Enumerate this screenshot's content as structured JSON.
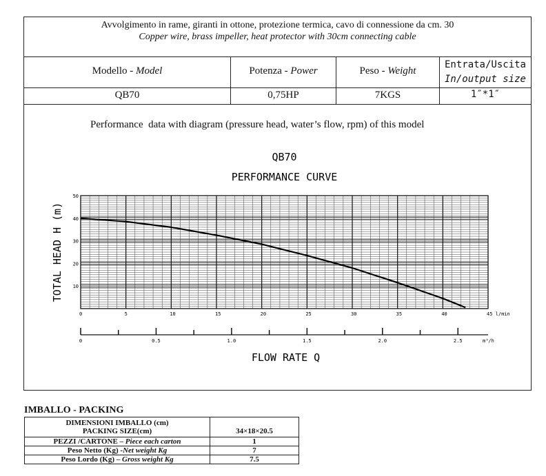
{
  "header": {
    "line_it": "Avvolgimento in rame, giranti in ottone, protezione termica, cavo di connessione da cm. 30",
    "line_en": "Copper wire, brass impeller, heat protector with 30cm connecting cable"
  },
  "spec": {
    "model_label": "Modello - ",
    "model_label_en": "Model",
    "power_label": "Potenza - ",
    "power_label_en": "Power",
    "weight_label": "Peso - ",
    "weight_label_en": "Weight",
    "size_label": "Entrata/Uscita",
    "size_label_en": "In/output size",
    "model": "QB70",
    "power": "0,75HP",
    "weight": "7KGS",
    "size": "1″*1″"
  },
  "perf_caption": "Performance  data with diagram (pressure head, water’s flow, rpm) of this model",
  "chart_data": {
    "type": "line",
    "title": "QB70",
    "subtitle": "PERFORMANCE CURVE",
    "ylabel": "TOTAL HEAD  H (m)",
    "xlabel": "FLOW RATE Q",
    "x_unit": "l/min",
    "x2_unit": "m³/h",
    "xlim": [
      0,
      45
    ],
    "ylim": [
      0,
      50
    ],
    "x_ticks": [
      "0",
      "5",
      "10",
      "15",
      "20",
      "25",
      "30",
      "35",
      "40",
      "45"
    ],
    "y_ticks": [
      "10",
      "20",
      "30",
      "40",
      "50"
    ],
    "x2_ticks": [
      "0",
      "0.5",
      "1.0",
      "1.5",
      "2.0",
      "2.5"
    ],
    "grid": true,
    "series": [
      {
        "x": [
          0,
          5,
          10,
          15,
          20,
          25,
          30,
          35,
          40,
          42.5
        ],
        "y": [
          40,
          38.5,
          36,
          32.5,
          28.5,
          23.5,
          18,
          11.5,
          4.5,
          0.5
        ]
      }
    ]
  },
  "packing": {
    "title": "IMBALLO - PACKING",
    "dim_label_1": "DIMENSIONI IMBALLO (cm)",
    "dim_label_2": "PACKING SIZE(cm)",
    "dim_value": "34×18×20.5",
    "pieces_label_it": "PEZZI /CARTONE – ",
    "pieces_label_en": "Piece each carton",
    "pieces_value": "1",
    "net_label_it": "Peso Netto (Kg) -",
    "net_label_en": "Net  weight Kg",
    "net_value": "7",
    "gross_label_it": "Peso Lordo (Kg) – ",
    "gross_label_en": "Gross weight Kg",
    "gross_value": "7.5"
  }
}
